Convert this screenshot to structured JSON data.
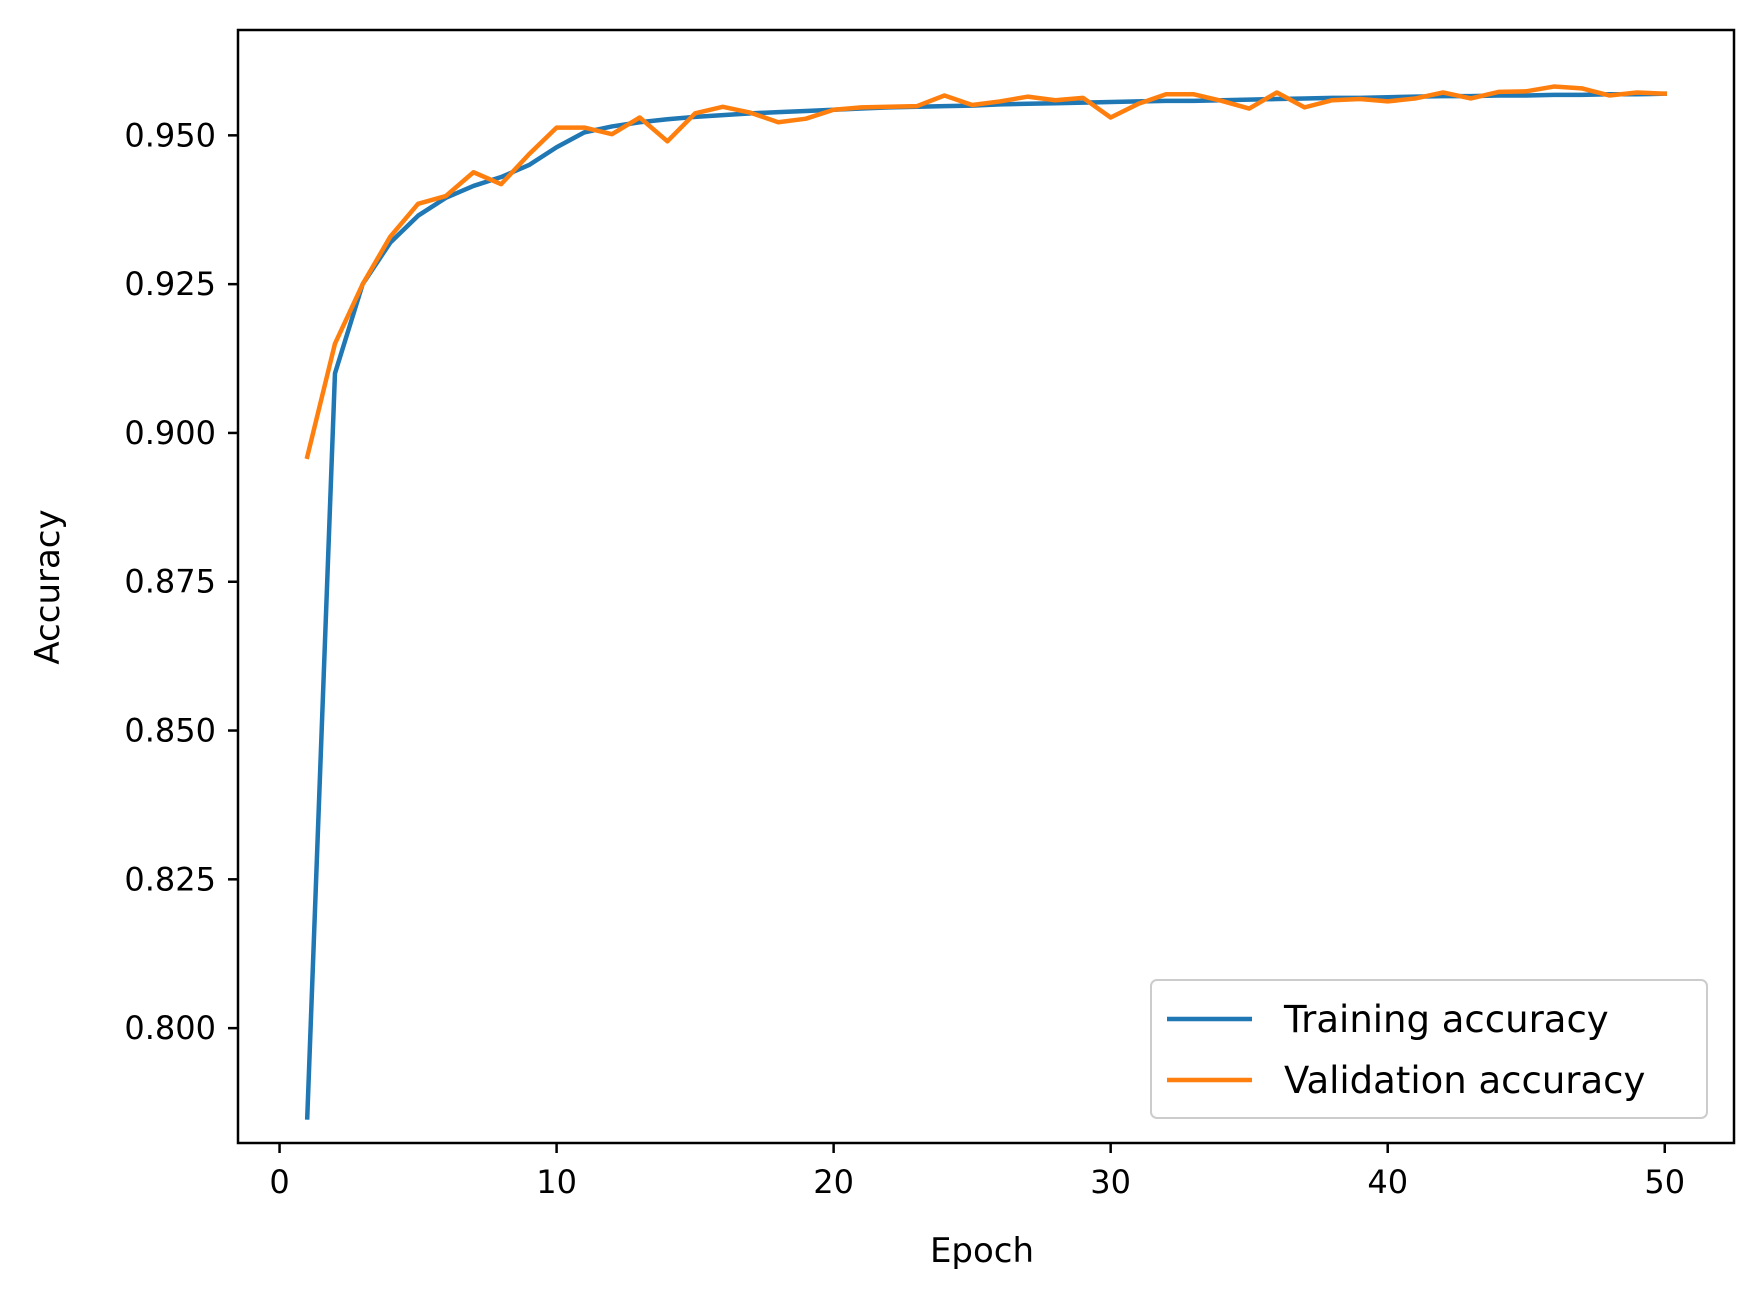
{
  "chart_data": {
    "type": "line",
    "title": "",
    "xlabel": "Epoch",
    "ylabel": "Accuracy",
    "xlim": [
      -1.5,
      52.5
    ],
    "ylim": [
      0.7807,
      0.9677
    ],
    "xticks": [
      0,
      10,
      20,
      30,
      40,
      50
    ],
    "yticks": [
      0.8,
      0.825,
      0.85,
      0.875,
      0.9,
      0.925,
      0.95
    ],
    "xtick_labels": [
      "0",
      "10",
      "20",
      "30",
      "40",
      "50"
    ],
    "ytick_labels": [
      "0.800",
      "0.825",
      "0.850",
      "0.875",
      "0.900",
      "0.925",
      "0.950"
    ],
    "grid": false,
    "legend_position": "lower-right",
    "x": [
      1,
      2,
      3,
      4,
      5,
      6,
      7,
      8,
      9,
      10,
      11,
      12,
      13,
      14,
      15,
      16,
      17,
      18,
      19,
      20,
      21,
      22,
      23,
      24,
      25,
      26,
      27,
      28,
      29,
      30,
      31,
      32,
      33,
      34,
      35,
      36,
      37,
      38,
      39,
      40,
      41,
      42,
      43,
      44,
      45,
      46,
      47,
      48,
      49,
      50
    ],
    "series": [
      {
        "name": "Training accuracy",
        "color": "#1f77b4",
        "values": [
          0.785,
          0.91,
          0.925,
          0.932,
          0.9365,
          0.9395,
          0.9415,
          0.943,
          0.945,
          0.948,
          0.9505,
          0.9515,
          0.9522,
          0.9527,
          0.9531,
          0.9534,
          0.9537,
          0.9539,
          0.9541,
          0.9543,
          0.9545,
          0.9547,
          0.9548,
          0.9549,
          0.955,
          0.9552,
          0.9553,
          0.9554,
          0.9555,
          0.9556,
          0.9557,
          0.9558,
          0.9558,
          0.9559,
          0.956,
          0.9561,
          0.9562,
          0.9563,
          0.9563,
          0.9564,
          0.9565,
          0.9566,
          0.9566,
          0.9567,
          0.9567,
          0.9568,
          0.9568,
          0.9569,
          0.9569,
          0.957
        ]
      },
      {
        "name": "Validation accuracy",
        "color": "#ff7f0e",
        "values": [
          0.896,
          0.915,
          0.925,
          0.933,
          0.9385,
          0.9398,
          0.9438,
          0.9418,
          0.9468,
          0.9513,
          0.9513,
          0.9502,
          0.953,
          0.949,
          0.9537,
          0.9548,
          0.9538,
          0.9522,
          0.9528,
          0.9543,
          0.9547,
          0.9548,
          0.9549,
          0.9567,
          0.9551,
          0.9557,
          0.9565,
          0.9559,
          0.9563,
          0.953,
          0.9553,
          0.9569,
          0.9569,
          0.9558,
          0.9545,
          0.9572,
          0.9547,
          0.9559,
          0.9561,
          0.9557,
          0.9562,
          0.9572,
          0.9562,
          0.9573,
          0.9574,
          0.9582,
          0.9579,
          0.9567,
          0.9572,
          0.957
        ]
      }
    ]
  }
}
